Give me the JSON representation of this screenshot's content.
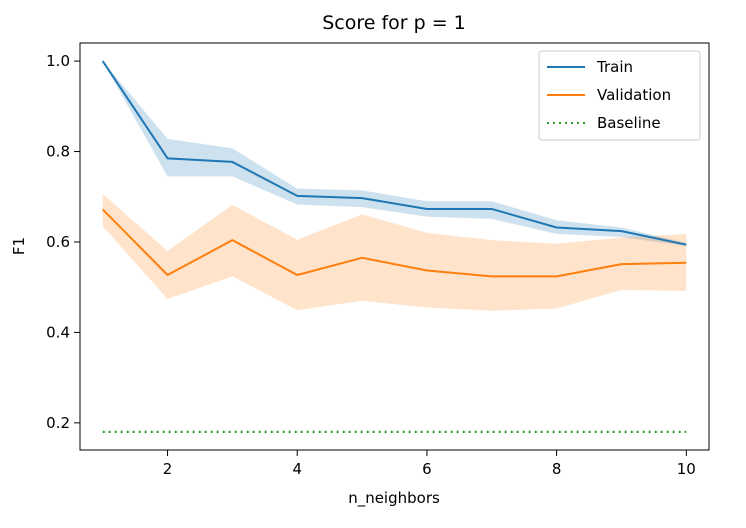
{
  "chart_data": {
    "type": "line",
    "title": "Score for p = 1",
    "xlabel": "n_neighbors",
    "ylabel": "F1",
    "xlim": [
      0.65,
      10.35
    ],
    "ylim": [
      0.14,
      1.04
    ],
    "xticks": [
      2,
      4,
      6,
      8,
      10
    ],
    "yticks": [
      0.2,
      0.4,
      0.6,
      0.8,
      1.0
    ],
    "xtick_labels": [
      "2",
      "4",
      "6",
      "8",
      "10"
    ],
    "ytick_labels": [
      "0.2",
      "0.4",
      "0.6",
      "0.8",
      "1.0"
    ],
    "grid": false,
    "legend_position": "top-right",
    "x": [
      1,
      2,
      3,
      4,
      5,
      6,
      7,
      8,
      9,
      10
    ],
    "series": [
      {
        "name": "Train",
        "color": "#1f77b4",
        "style": "solid",
        "values": [
          1.0,
          0.785,
          0.777,
          0.702,
          0.697,
          0.673,
          0.673,
          0.632,
          0.624,
          0.594
        ],
        "lower": [
          1.0,
          0.745,
          0.745,
          0.683,
          0.677,
          0.656,
          0.651,
          0.618,
          0.611,
          0.591
        ],
        "upper": [
          1.0,
          0.828,
          0.807,
          0.718,
          0.714,
          0.69,
          0.69,
          0.648,
          0.632,
          0.598
        ]
      },
      {
        "name": "Validation",
        "color": "#ff7f0e",
        "style": "solid",
        "values": [
          0.672,
          0.527,
          0.604,
          0.527,
          0.565,
          0.537,
          0.524,
          0.524,
          0.551,
          0.554
        ],
        "lower": [
          0.635,
          0.474,
          0.524,
          0.449,
          0.47,
          0.455,
          0.448,
          0.453,
          0.494,
          0.492
        ],
        "upper": [
          0.706,
          0.58,
          0.682,
          0.605,
          0.661,
          0.62,
          0.604,
          0.596,
          0.61,
          0.618
        ]
      },
      {
        "name": "Baseline",
        "color": "#2ca02c",
        "style": "dotted",
        "values": [
          0.18,
          0.18,
          0.18,
          0.18,
          0.18,
          0.18,
          0.18,
          0.18,
          0.18,
          0.18
        ]
      }
    ]
  }
}
